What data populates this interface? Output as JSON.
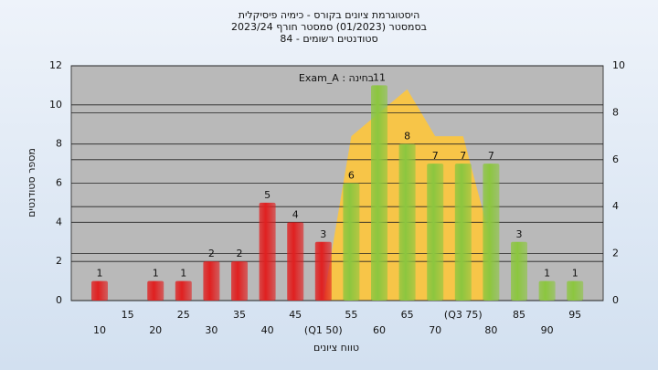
{
  "chart_data": {
    "type": "bar",
    "title": "היסטוגרמת ציונים בקורס - כימיה פיסיקלית",
    "subtitle": "בסמסטר (01/2023) סמסטר חורף 2023/24",
    "subtitle2": "סטודנטים רשומים - 84",
    "annotation": "בחינה : Exam_A",
    "x_label": "טווח ציונים",
    "y_label": "מספר סטודנטים",
    "categories": [
      "10",
      "15",
      "20",
      "25",
      "30",
      "35",
      "40",
      "45",
      "(Q1 50)",
      "55",
      "60",
      "65",
      "70",
      "(Q3 75)",
      "80",
      "85",
      "90",
      "95"
    ],
    "series": [
      {
        "type": "bar",
        "values": [
          1,
          0,
          1,
          1,
          2,
          2,
          5,
          4,
          3,
          6,
          11,
          8,
          7,
          7,
          7,
          3,
          1,
          1
        ],
        "colors": [
          "#e02020",
          "#e02020",
          "#e02020",
          "#e02020",
          "#e02020",
          "#e02020",
          "#e02020",
          "#e02020",
          "#e02020",
          "#8cc63f",
          "#8cc63f",
          "#8cc63f",
          "#8cc63f",
          "#8cc63f",
          "#8cc63f",
          "#8cc63f",
          "#8cc63f",
          "#8cc63f"
        ]
      },
      {
        "type": "area",
        "axis": "y2",
        "color": "#f7c548",
        "values": [
          null,
          null,
          null,
          null,
          null,
          null,
          null,
          null,
          0,
          7,
          8,
          9,
          7,
          7,
          2.5,
          null,
          null,
          null
        ]
      }
    ],
    "ylim": [
      0,
      12
    ],
    "yticks": [
      0,
      2,
      4,
      6,
      8,
      10,
      12
    ],
    "y2lim": [
      0,
      10
    ],
    "y2ticks": [
      0,
      2,
      4,
      6,
      8,
      10
    ],
    "grid": true
  }
}
